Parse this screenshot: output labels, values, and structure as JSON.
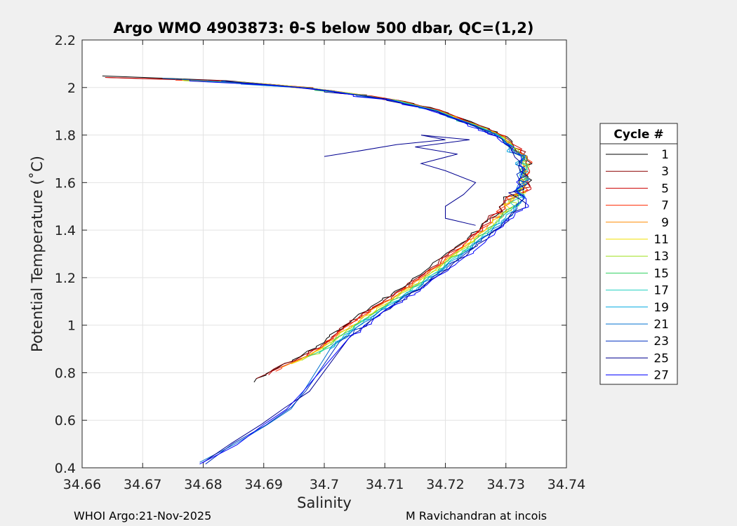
{
  "chart_data": {
    "type": "line",
    "title": "Argo WMO 4903873: θ-S below 500 dbar,  QC=(1,2)",
    "xlabel": "Salinity",
    "ylabel": "Potential Temperature (˚C)",
    "xlim": [
      34.66,
      34.74
    ],
    "ylim": [
      0.4,
      2.2
    ],
    "xticks": [
      "34.66",
      "34.67",
      "34.68",
      "34.69",
      "34.7",
      "34.71",
      "34.72",
      "34.73",
      "34.74"
    ],
    "yticks": [
      "0.4",
      "0.6",
      "0.8",
      "1",
      "1.2",
      "1.4",
      "1.6",
      "1.8",
      "2",
      "2.2"
    ],
    "grid": true,
    "legend_title": "Cycle #",
    "legend_position": "right, outside plot",
    "series": [
      {
        "name": "1",
        "color": "#000000"
      },
      {
        "name": "3",
        "color": "#8b0000"
      },
      {
        "name": "5",
        "color": "#cc0000"
      },
      {
        "name": "7",
        "color": "#ff2a00"
      },
      {
        "name": "9",
        "color": "#ff8c00"
      },
      {
        "name": "11",
        "color": "#f0e000"
      },
      {
        "name": "13",
        "color": "#a0e020"
      },
      {
        "name": "15",
        "color": "#30d060"
      },
      {
        "name": "17",
        "color": "#20d0c0"
      },
      {
        "name": "19",
        "color": "#00a8e0"
      },
      {
        "name": "21",
        "color": "#0070d0"
      },
      {
        "name": "23",
        "color": "#0030c0"
      },
      {
        "name": "25",
        "color": "#000090"
      },
      {
        "name": "27",
        "color": "#0000ff"
      }
    ],
    "profile_shape": {
      "curve_theta": [
        0.77,
        0.9,
        1.0,
        1.1,
        1.2,
        1.3,
        1.4,
        1.5,
        1.6,
        1.7,
        1.8,
        1.9,
        1.95,
        2.0,
        2.03,
        2.05
      ],
      "curve_salinity": [
        34.69,
        34.7,
        34.705,
        34.711,
        34.717,
        34.722,
        34.727,
        34.731,
        34.733,
        34.733,
        34.729,
        34.719,
        34.711,
        34.697,
        34.682,
        34.662
      ],
      "deep_tail_theta": [
        0.42,
        0.5,
        0.58,
        0.65,
        0.72
      ],
      "deep_tail_salinity": [
        34.68,
        34.685,
        34.69,
        34.694,
        34.697
      ],
      "cycle_25_intrusion_theta": [
        1.71,
        1.73,
        1.76,
        1.78,
        1.8,
        1.78,
        1.75,
        1.72,
        1.68,
        1.65,
        1.6,
        1.55,
        1.5,
        1.45,
        1.42
      ],
      "cycle_25_intrusion_salinity": [
        34.7,
        34.705,
        34.712,
        34.72,
        34.716,
        34.724,
        34.715,
        34.722,
        34.716,
        34.72,
        34.725,
        34.723,
        34.72,
        34.72,
        34.725
      ]
    }
  },
  "footer": {
    "left": "WHOI Argo:21-Nov-2025",
    "right": "M Ravichandran at incois"
  }
}
